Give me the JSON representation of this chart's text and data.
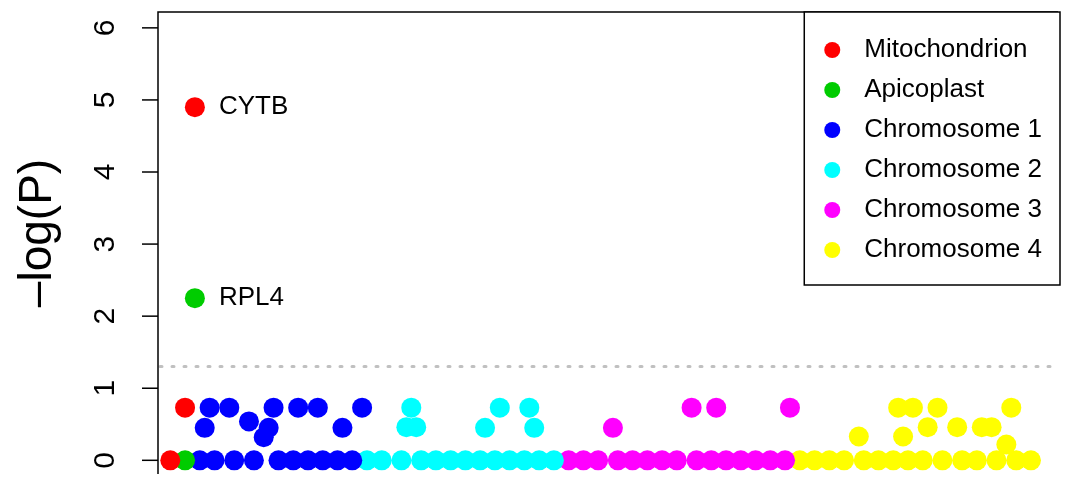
{
  "chart_data": {
    "type": "scatter",
    "ylabel": "–log(P)",
    "marker": "circle",
    "legend": "top right",
    "categories": [
      null,
      null,
      null,
      null,
      null,
      null,
      null,
      null,
      null,
      null,
      null,
      null,
      null,
      null,
      null,
      null,
      null,
      null,
      null,
      null,
      null,
      null,
      null,
      null,
      null,
      null,
      null,
      null,
      null,
      null,
      null,
      null,
      null,
      null,
      null,
      null,
      null,
      null,
      null,
      null,
      null,
      null,
      null,
      null,
      null,
      null,
      null,
      null,
      null,
      null,
      null,
      null,
      null,
      null,
      null,
      null,
      null,
      null,
      null,
      null,
      null,
      null,
      null,
      null,
      null,
      null,
      null,
      null,
      null,
      null,
      null,
      null,
      null,
      null,
      null,
      null,
      null,
      null,
      null,
      null,
      null,
      null,
      null,
      null,
      null,
      null,
      null,
      null,
      null,
      null,
      null,
      null,
      null,
      null,
      null,
      null,
      null,
      null,
      null,
      null,
      null,
      null,
      null,
      null,
      null,
      null,
      null,
      null,
      null,
      null,
      null,
      null,
      null,
      null,
      null,
      null,
      null,
      null,
      null,
      null,
      null,
      null,
      null,
      null,
      null,
      null,
      null,
      null,
      null,
      null,
      null,
      null,
      null,
      null,
      null,
      null,
      null,
      null,
      null,
      null,
      null,
      null,
      null,
      null,
      null,
      null,
      null,
      null,
      null,
      null,
      null,
      null,
      null,
      null,
      null,
      null,
      null,
      null,
      null,
      null,
      null,
      null,
      null,
      null,
      null,
      null,
      null,
      null,
      null,
      null,
      null,
      null,
      null,
      null,
      null,
      null,
      null,
      null,
      null,
      null,
      null,
      null,
      null
    ],
    "ylim": [
      -0.19,
      6.22
    ],
    "yticks": [
      0,
      1,
      2,
      3,
      4,
      5,
      6
    ],
    "ref_lines": [
      {
        "axis": "y",
        "value": 1.3,
        "color": "#c0c0c0",
        "line_style": "dotted"
      }
    ],
    "annotations": [
      "CYTB",
      "RPL4"
    ],
    "series": [
      {
        "name": "Mitochondrion",
        "color": "#ff0000",
        "values": [
          null,
          null,
          0,
          null,
          null,
          0.73,
          null,
          4.9,
          null,
          null,
          null,
          null,
          null,
          null,
          null,
          null,
          null,
          null,
          null,
          null,
          null,
          null,
          null,
          null,
          null,
          null,
          null,
          null,
          null,
          null,
          null,
          null,
          null,
          null,
          null,
          null,
          null,
          null,
          null,
          null,
          null,
          null,
          null,
          null,
          null,
          null,
          null,
          null,
          null,
          null,
          null,
          null,
          null,
          null,
          null,
          null,
          null,
          null,
          null,
          null,
          null,
          null,
          null,
          null,
          null,
          null,
          null,
          null,
          null,
          null,
          null,
          null,
          null,
          null,
          null,
          null,
          null,
          null,
          null,
          null,
          null,
          null,
          null,
          null,
          null,
          null,
          null,
          null,
          null,
          null,
          null,
          null,
          null,
          null,
          null,
          null,
          null,
          null,
          null,
          null,
          null,
          null,
          null,
          null,
          null,
          null,
          null,
          null,
          null,
          null,
          null,
          null,
          null,
          null,
          null,
          null,
          null,
          null,
          null,
          null,
          null,
          null,
          null,
          null,
          null,
          null,
          null,
          null,
          null,
          null,
          null,
          null,
          null,
          null,
          null,
          null,
          null,
          null,
          null,
          null,
          null,
          null,
          null,
          null,
          null,
          null,
          null,
          null,
          null,
          null,
          null,
          null,
          null,
          null,
          null,
          null,
          null,
          null,
          null,
          null,
          null,
          null,
          null,
          null,
          null,
          null,
          null,
          null,
          null,
          null,
          null,
          null,
          null,
          null,
          null,
          null,
          null,
          null,
          null,
          null,
          null,
          null,
          null
        ]
      },
      {
        "name": "Apicoplast",
        "color": "#00cc00",
        "values": [
          null,
          null,
          null,
          null,
          null,
          0,
          null,
          2.25,
          null,
          null,
          null,
          null,
          null,
          null,
          null,
          null,
          null,
          null,
          null,
          null,
          null,
          null,
          null,
          null,
          null,
          null,
          null,
          null,
          null,
          null,
          null,
          null,
          null,
          null,
          null,
          null,
          null,
          null,
          null,
          null,
          null,
          null,
          null,
          null,
          null,
          null,
          null,
          null,
          null,
          null,
          null,
          null,
          null,
          null,
          null,
          null,
          null,
          null,
          null,
          null,
          null,
          null,
          null,
          null,
          null,
          null,
          null,
          null,
          null,
          null,
          null,
          null,
          null,
          null,
          null,
          null,
          null,
          null,
          null,
          null,
          null,
          null,
          null,
          null,
          null,
          null,
          null,
          null,
          null,
          null,
          null,
          null,
          null,
          null,
          null,
          null,
          null,
          null,
          null,
          null,
          null,
          null,
          null,
          null,
          null,
          null,
          null,
          null,
          null,
          null,
          null,
          null,
          null,
          null,
          null,
          null,
          null,
          null,
          null,
          null,
          null,
          null,
          null,
          null,
          null,
          null,
          null,
          null,
          null,
          null,
          null,
          null,
          null,
          null,
          null,
          null,
          null,
          null,
          null,
          null,
          null,
          null,
          null,
          null,
          null,
          null,
          null,
          null,
          null,
          null,
          null,
          null,
          null,
          null,
          null,
          null,
          null,
          null,
          null,
          null,
          null,
          null,
          null,
          null,
          null,
          null,
          null,
          null,
          null,
          null,
          null,
          null,
          null,
          null,
          null,
          null,
          null,
          null,
          null,
          null,
          null,
          null,
          null
        ]
      },
      {
        "name": "Chromosome 1",
        "color": "#0000ff",
        "values": [
          null,
          null,
          null,
          null,
          null,
          null,
          null,
          null,
          0,
          0.45,
          0.73,
          0,
          null,
          null,
          0.73,
          0,
          null,
          null,
          0.54,
          0,
          null,
          0.32,
          0.45,
          0.73,
          0,
          null,
          null,
          0,
          0.73,
          null,
          0,
          null,
          0.73,
          0,
          null,
          null,
          0,
          0.45,
          null,
          0,
          null,
          0.73,
          null,
          null,
          null,
          null,
          null,
          null,
          null,
          null,
          null,
          null,
          null,
          null,
          null,
          null,
          null,
          null,
          null,
          null,
          null,
          null,
          null,
          null,
          null,
          null,
          null,
          null,
          null,
          null,
          null,
          null,
          null,
          null,
          null,
          null,
          null,
          null,
          null,
          null,
          null,
          null,
          null,
          null,
          null,
          null,
          null,
          null,
          null,
          null,
          null,
          null,
          null,
          null,
          null,
          null,
          null,
          null,
          null,
          null,
          null,
          null,
          null,
          null,
          null,
          null,
          null,
          null,
          null,
          null,
          null,
          null,
          null,
          null,
          null,
          null,
          null,
          null,
          null,
          null,
          null,
          null,
          null,
          null,
          null,
          null,
          null,
          null,
          null,
          null,
          null,
          null,
          null,
          null,
          null,
          null,
          null,
          null,
          null,
          null,
          null,
          null,
          null,
          null,
          null,
          null,
          null,
          null,
          null,
          null,
          null,
          null,
          null,
          null,
          null,
          null,
          null,
          null,
          null,
          null,
          null,
          null,
          null,
          null,
          null,
          null,
          null,
          null,
          null,
          null,
          null,
          null,
          null,
          null,
          null,
          null,
          null,
          null,
          null,
          null,
          null,
          null,
          null
        ]
      },
      {
        "name": "Chromosome 2",
        "color": "#00ffff",
        "values": [
          null,
          null,
          null,
          null,
          null,
          null,
          null,
          null,
          null,
          null,
          null,
          null,
          null,
          null,
          null,
          null,
          null,
          null,
          null,
          null,
          null,
          null,
          null,
          null,
          null,
          null,
          null,
          null,
          null,
          null,
          null,
          null,
          null,
          null,
          null,
          null,
          null,
          null,
          null,
          null,
          null,
          null,
          0,
          null,
          null,
          0,
          null,
          null,
          null,
          0,
          0.46,
          0.73,
          0.46,
          0,
          null,
          null,
          0,
          null,
          null,
          0,
          null,
          null,
          0,
          null,
          null,
          0,
          0.45,
          null,
          0,
          0.73,
          null,
          0,
          null,
          null,
          0,
          0.73,
          0.45,
          0,
          null,
          null,
          0,
          null,
          null,
          null,
          null,
          null,
          null,
          null,
          null,
          null,
          null,
          null,
          null,
          null,
          null,
          null,
          null,
          null,
          null,
          null,
          null,
          null,
          null,
          null,
          null,
          null,
          null,
          null,
          null,
          null,
          null,
          null,
          null,
          null,
          null,
          null,
          null,
          null,
          null,
          null,
          null,
          null,
          null,
          null,
          null,
          null,
          null,
          null,
          null,
          null,
          null,
          null,
          null,
          null,
          null,
          null,
          null,
          null,
          null,
          null,
          null,
          null,
          null,
          null,
          null,
          null,
          null,
          null,
          null,
          null,
          null,
          null,
          null,
          null,
          null,
          null,
          null,
          null,
          null,
          null,
          null,
          null,
          null,
          null,
          null,
          null,
          null,
          null,
          null,
          null,
          null,
          null,
          null,
          null,
          null,
          null,
          null,
          null,
          null,
          null,
          null,
          null,
          null
        ]
      },
      {
        "name": "Chromosome 3",
        "color": "#ff00ff",
        "values": [
          null,
          null,
          null,
          null,
          null,
          null,
          null,
          null,
          null,
          null,
          null,
          null,
          null,
          null,
          null,
          null,
          null,
          null,
          null,
          null,
          null,
          null,
          null,
          null,
          null,
          null,
          null,
          null,
          null,
          null,
          null,
          null,
          null,
          null,
          null,
          null,
          null,
          null,
          null,
          null,
          null,
          null,
          null,
          null,
          null,
          null,
          null,
          null,
          null,
          null,
          null,
          null,
          null,
          null,
          null,
          null,
          null,
          null,
          null,
          null,
          null,
          null,
          null,
          null,
          null,
          null,
          null,
          null,
          null,
          null,
          null,
          null,
          null,
          null,
          null,
          null,
          null,
          null,
          null,
          null,
          null,
          null,
          null,
          0,
          null,
          null,
          0,
          null,
          null,
          0,
          null,
          null,
          0.45,
          0,
          null,
          null,
          0,
          null,
          null,
          0,
          null,
          null,
          0,
          null,
          null,
          0,
          null,
          null,
          0.73,
          0,
          null,
          null,
          0,
          0.73,
          null,
          0,
          null,
          null,
          0,
          null,
          null,
          0,
          null,
          null,
          0,
          null,
          null,
          0,
          0.73,
          null,
          null,
          null,
          null,
          null,
          null,
          null,
          null,
          null,
          null,
          null,
          null,
          null,
          null,
          null,
          null,
          null,
          null,
          null,
          null,
          null,
          null,
          null,
          null,
          null,
          null,
          null,
          null,
          null,
          null,
          null,
          null,
          null,
          null,
          null,
          null,
          null,
          null,
          null,
          null,
          null,
          null,
          null,
          null,
          null,
          null,
          null,
          null,
          null,
          null,
          null,
          null,
          null,
          null
        ]
      },
      {
        "name": "Chromosome 4",
        "color": "#ffff00",
        "values": [
          null,
          null,
          null,
          null,
          null,
          null,
          null,
          null,
          null,
          null,
          null,
          null,
          null,
          null,
          null,
          null,
          null,
          null,
          null,
          null,
          null,
          null,
          null,
          null,
          null,
          null,
          null,
          null,
          null,
          null,
          null,
          null,
          null,
          null,
          null,
          null,
          null,
          null,
          null,
          null,
          null,
          null,
          null,
          null,
          null,
          null,
          null,
          null,
          null,
          null,
          null,
          null,
          null,
          null,
          null,
          null,
          null,
          null,
          null,
          null,
          null,
          null,
          null,
          null,
          null,
          null,
          null,
          null,
          null,
          null,
          null,
          null,
          null,
          null,
          null,
          null,
          null,
          null,
          null,
          null,
          null,
          null,
          null,
          null,
          null,
          null,
          null,
          null,
          null,
          null,
          null,
          null,
          null,
          null,
          null,
          null,
          null,
          null,
          null,
          null,
          null,
          null,
          null,
          null,
          null,
          null,
          null,
          null,
          null,
          null,
          null,
          null,
          null,
          null,
          null,
          null,
          null,
          null,
          null,
          null,
          null,
          null,
          null,
          null,
          null,
          null,
          null,
          null,
          null,
          null,
          0,
          null,
          null,
          0,
          null,
          null,
          0,
          null,
          null,
          0,
          null,
          null,
          0.33,
          0,
          null,
          null,
          0,
          null,
          null,
          0,
          0.73,
          0.33,
          0,
          0.73,
          null,
          0,
          0.46,
          null,
          0.73,
          0,
          null,
          null,
          0.46,
          0,
          null,
          null,
          0,
          0.46,
          null,
          0.46,
          0,
          null,
          0.22,
          0.73,
          0,
          null,
          null,
          0,
          null,
          null,
          null,
          null,
          null
        ]
      }
    ]
  }
}
